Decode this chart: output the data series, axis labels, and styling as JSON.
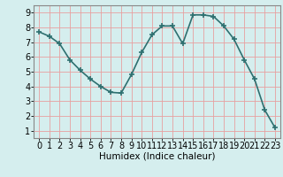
{
  "x": [
    0,
    1,
    2,
    3,
    4,
    5,
    6,
    7,
    8,
    9,
    10,
    11,
    12,
    13,
    14,
    15,
    16,
    17,
    18,
    19,
    20,
    21,
    22,
    23
  ],
  "y": [
    7.7,
    7.4,
    6.9,
    5.8,
    5.1,
    4.5,
    4.0,
    3.6,
    3.55,
    4.8,
    6.3,
    7.5,
    8.1,
    8.1,
    6.9,
    8.85,
    8.85,
    8.75,
    8.1,
    7.2,
    5.8,
    4.5,
    2.4,
    1.2
  ],
  "line_color": "#2e7070",
  "marker": "+",
  "marker_size": 4,
  "marker_lw": 1.2,
  "line_width": 1.2,
  "bg_color": "#d5eeee",
  "grid_color": "#e8a0a0",
  "xlabel": "Humidex (Indice chaleur)",
  "xlim": [
    -0.5,
    23.5
  ],
  "ylim": [
    0.5,
    9.5
  ],
  "xtick_labels": [
    "0",
    "1",
    "2",
    "3",
    "4",
    "5",
    "6",
    "7",
    "8",
    "9",
    "10",
    "11",
    "12",
    "13",
    "14",
    "15",
    "16",
    "17",
    "18",
    "19",
    "20",
    "21",
    "22",
    "23"
  ],
  "ytick_values": [
    1,
    2,
    3,
    4,
    5,
    6,
    7,
    8,
    9
  ],
  "xlabel_fontsize": 7.5,
  "tick_fontsize": 7
}
